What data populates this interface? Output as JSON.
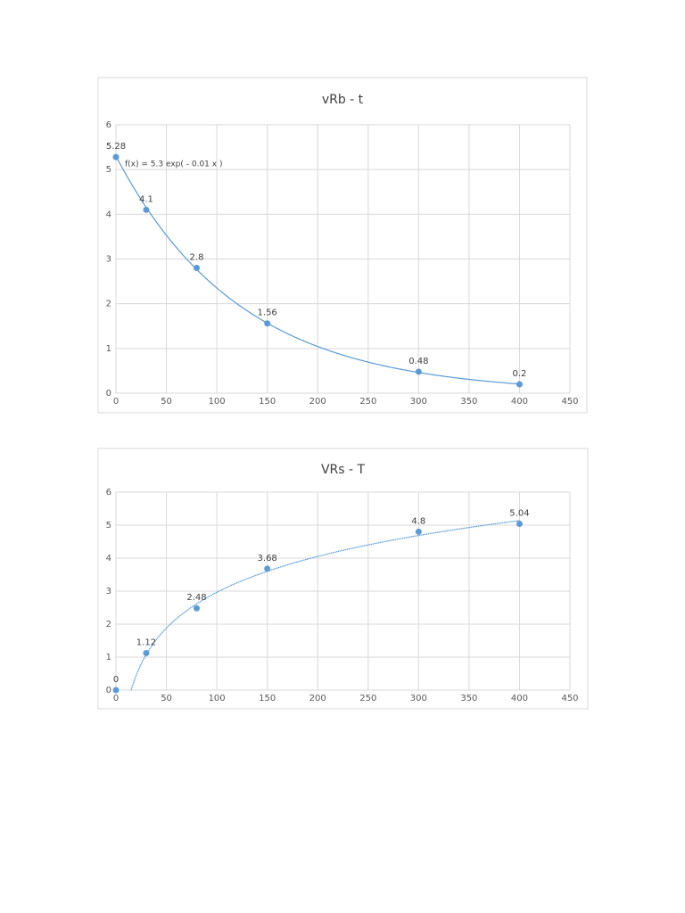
{
  "chart_data": [
    {
      "type": "scatter",
      "title": "vRb - t",
      "x": [
        0,
        30,
        80,
        150,
        300,
        400
      ],
      "series": [
        {
          "color": "#5b9bd5",
          "values": [
            5.28,
            4.1,
            2.8,
            1.56,
            0.48,
            0.2
          ]
        }
      ],
      "trendline": "exponential",
      "trendline_label": "f(x) = 5.3 exp( - 0.01 x )",
      "xlim": [
        0,
        450
      ],
      "xticks": [
        0,
        50,
        100,
        150,
        200,
        250,
        300,
        350,
        400,
        450
      ],
      "ylim": [
        0,
        6
      ],
      "yticks": [
        0,
        1,
        2,
        3,
        4,
        5,
        6
      ],
      "grid": true
    },
    {
      "type": "scatter",
      "title": "VRs - T",
      "x": [
        0,
        30,
        80,
        150,
        300,
        400
      ],
      "series": [
        {
          "color": "#5b9bd5",
          "values": [
            0,
            1.12,
            2.48,
            3.68,
            4.8,
            5.04
          ]
        }
      ],
      "trendline": "logarithmic",
      "xlim": [
        0,
        450
      ],
      "xticks": [
        0,
        50,
        100,
        150,
        200,
        250,
        300,
        350,
        400,
        450
      ],
      "ylim": [
        0,
        6
      ],
      "yticks": [
        0,
        1,
        2,
        3,
        4,
        5,
        6
      ],
      "grid": true
    }
  ]
}
